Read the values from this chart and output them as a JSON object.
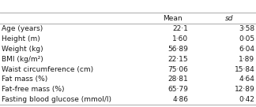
{
  "header": [
    "Mean",
    "SD"
  ],
  "rows": [
    [
      "Age (years)",
      "22·1",
      "3·58"
    ],
    [
      "Height (m)",
      "1·60",
      "0·05"
    ],
    [
      "Weight (kg)",
      "56·89",
      "6·04"
    ],
    [
      "BMI (kg/m²)",
      "22·15",
      "1·89"
    ],
    [
      "Waist circumference (cm)",
      "75·06",
      "15·84"
    ],
    [
      "Fat mass (%)",
      "28·81",
      "4·64"
    ],
    [
      "Fat-free mass (%)",
      "65·79",
      "12·89"
    ],
    [
      "Fasting blood glucose (mmol/l)",
      "4·86",
      "0·42"
    ]
  ],
  "bg_color": "#ffffff",
  "text_color": "#1a1a1a",
  "line_color": "#aaaaaa",
  "header_fontsize": 6.5,
  "row_fontsize": 6.5,
  "figwidth": 3.24,
  "figheight": 1.36,
  "dpi": 100
}
